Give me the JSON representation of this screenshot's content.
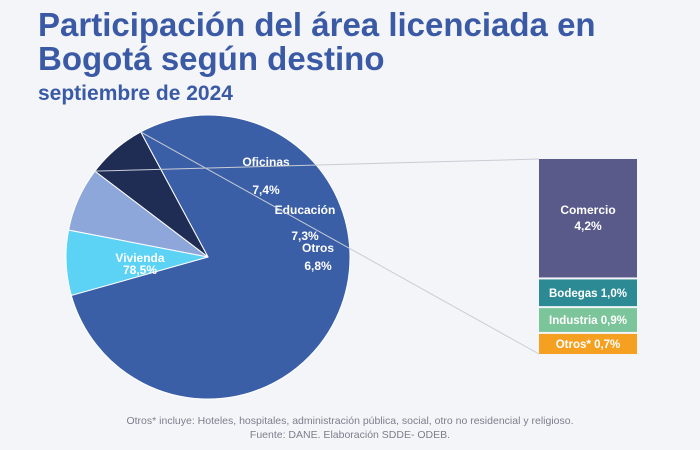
{
  "title": "Participación del área licenciada en Bogotá según destino",
  "subtitle": "septiembre de 2024",
  "chart_data": {
    "type": "pie",
    "title": "Participación del área licenciada en Bogotá según destino",
    "subtitle": "septiembre de 2024",
    "unit": "%",
    "slices": [
      {
        "name": "Vivienda",
        "value": 78.5,
        "label": "78,5%",
        "color": "#3a5fa6"
      },
      {
        "name": "Oficinas",
        "value": 7.4,
        "label": "7,4%",
        "color": "#5cd2f5"
      },
      {
        "name": "Educación",
        "value": 7.3,
        "label": "7,3%",
        "color": "#8ea7da"
      },
      {
        "name": "Otros",
        "value": 6.8,
        "label": "6,8%",
        "color": "#1f2d55"
      }
    ],
    "breakdown": {
      "of": "Otros",
      "items": [
        {
          "name": "Comercio",
          "value": 4.2,
          "label": "4,2%",
          "color": "#5a5a8a"
        },
        {
          "name": "Bodegas",
          "value": 1.0,
          "label": "1,0%",
          "color": "#2c8a94"
        },
        {
          "name": "Industria",
          "value": 0.9,
          "label": "0,9%",
          "color": "#7cc49a"
        },
        {
          "name": "Otros*",
          "value": 0.7,
          "label": "0,7%",
          "color": "#f5a021"
        }
      ]
    }
  },
  "footnote": "Otros* incluye: Hoteles, hospitales, administración pública, social, otro no residencial y religioso.",
  "source": "Fuente: DANE. Elaboración SDDE- ODEB."
}
